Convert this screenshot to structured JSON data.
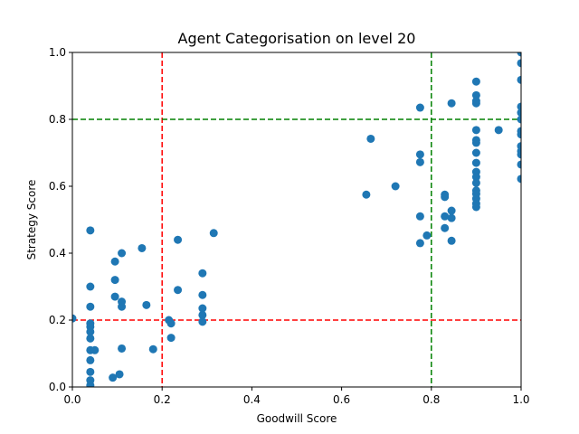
{
  "chart_data": {
    "type": "scatter",
    "title": "Agent Categorisation on level 20",
    "xlabel": "Goodwill Score",
    "ylabel": "Strategy Score",
    "xlim": [
      0,
      1
    ],
    "ylim": [
      0,
      1
    ],
    "xticks": [
      "0.0",
      "0.2",
      "0.4",
      "0.6",
      "0.8",
      "1.0"
    ],
    "yticks": [
      "0.0",
      "0.2",
      "0.4",
      "0.6",
      "0.8",
      "1.0"
    ],
    "grid": false,
    "point_color": "#1f77b4",
    "threshold_lines": [
      {
        "orientation": "vertical",
        "value": 0.2,
        "color": "#ff0000",
        "style": "dashed"
      },
      {
        "orientation": "horizontal",
        "value": 0.2,
        "color": "#ff0000",
        "style": "dashed"
      },
      {
        "orientation": "vertical",
        "value": 0.8,
        "color": "#008000",
        "style": "dashed"
      },
      {
        "orientation": "horizontal",
        "value": 0.8,
        "color": "#008000",
        "style": "dashed"
      }
    ],
    "points": [
      [
        0.0,
        0.205
      ],
      [
        0.04,
        0.468
      ],
      [
        0.04,
        0.3
      ],
      [
        0.04,
        0.24
      ],
      [
        0.04,
        0.19
      ],
      [
        0.04,
        0.18
      ],
      [
        0.04,
        0.165
      ],
      [
        0.04,
        0.145
      ],
      [
        0.04,
        0.11
      ],
      [
        0.05,
        0.11
      ],
      [
        0.04,
        0.08
      ],
      [
        0.04,
        0.045
      ],
      [
        0.04,
        0.02
      ],
      [
        0.04,
        0.005
      ],
      [
        0.09,
        0.028
      ],
      [
        0.105,
        0.038
      ],
      [
        0.11,
        0.115
      ],
      [
        0.095,
        0.375
      ],
      [
        0.095,
        0.32
      ],
      [
        0.095,
        0.27
      ],
      [
        0.11,
        0.4
      ],
      [
        0.11,
        0.255
      ],
      [
        0.11,
        0.24
      ],
      [
        0.155,
        0.415
      ],
      [
        0.165,
        0.245
      ],
      [
        0.18,
        0.113
      ],
      [
        0.215,
        0.2
      ],
      [
        0.22,
        0.19
      ],
      [
        0.22,
        0.147
      ],
      [
        0.235,
        0.44
      ],
      [
        0.235,
        0.29
      ],
      [
        0.29,
        0.34
      ],
      [
        0.29,
        0.275
      ],
      [
        0.29,
        0.235
      ],
      [
        0.29,
        0.215
      ],
      [
        0.29,
        0.195
      ],
      [
        0.315,
        0.46
      ],
      [
        0.655,
        0.575
      ],
      [
        0.665,
        0.742
      ],
      [
        0.72,
        0.6
      ],
      [
        0.775,
        0.835
      ],
      [
        0.775,
        0.695
      ],
      [
        0.775,
        0.672
      ],
      [
        0.775,
        0.51
      ],
      [
        0.775,
        0.43
      ],
      [
        0.79,
        0.453
      ],
      [
        0.83,
        0.575
      ],
      [
        0.83,
        0.568
      ],
      [
        0.83,
        0.51
      ],
      [
        0.83,
        0.475
      ],
      [
        0.845,
        0.848
      ],
      [
        0.845,
        0.527
      ],
      [
        0.845,
        0.505
      ],
      [
        0.845,
        0.437
      ],
      [
        0.9,
        0.913
      ],
      [
        0.9,
        0.872
      ],
      [
        0.9,
        0.855
      ],
      [
        0.9,
        0.848
      ],
      [
        0.9,
        0.768
      ],
      [
        0.9,
        0.738
      ],
      [
        0.9,
        0.73
      ],
      [
        0.9,
        0.7
      ],
      [
        0.9,
        0.67
      ],
      [
        0.9,
        0.643
      ],
      [
        0.9,
        0.628
      ],
      [
        0.9,
        0.61
      ],
      [
        0.9,
        0.587
      ],
      [
        0.9,
        0.577
      ],
      [
        0.9,
        0.563
      ],
      [
        0.9,
        0.548
      ],
      [
        0.9,
        0.538
      ],
      [
        0.95,
        0.768
      ],
      [
        1.0,
        1.0
      ],
      [
        1.0,
        0.968
      ],
      [
        1.0,
        0.918
      ],
      [
        1.0,
        0.838
      ],
      [
        1.0,
        0.82
      ],
      [
        1.0,
        0.8
      ],
      [
        1.0,
        0.765
      ],
      [
        1.0,
        0.755
      ],
      [
        1.0,
        0.72
      ],
      [
        1.0,
        0.705
      ],
      [
        1.0,
        0.695
      ],
      [
        1.0,
        0.665
      ],
      [
        1.0,
        0.622
      ]
    ]
  }
}
